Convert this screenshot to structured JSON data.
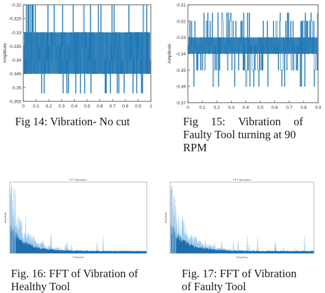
{
  "colors": {
    "series": "#1f77b4",
    "fft_dark": "#1f6fae",
    "fft_light": "#9ec9ea",
    "axis": "#333333"
  },
  "captions": {
    "fig14": "Fig 14: Vibration- No cut",
    "fig15": [
      "Fig",
      "15:",
      "Vibration",
      "of",
      "Faulty Tool turning at 90",
      "RPM"
    ],
    "fig16": [
      "Fig. 16: FFT of Vibration of",
      "Healthy Tool"
    ],
    "fig17": [
      "Fig. 17: FFT of Vibration",
      "of Faulty Tool"
    ]
  },
  "chart_data": [
    {
      "id": "fig14",
      "type": "line",
      "title": "",
      "xlabel": "",
      "ylabel": "Amplitude",
      "xlim": [
        0,
        1
      ],
      "ylim": [
        -0.355,
        -0.32
      ],
      "xticks": [
        "0",
        "0.1",
        "0.2",
        "0.3",
        "0.4",
        "0.5",
        "0.6",
        "0.7",
        "0.8",
        "0.9",
        "1"
      ],
      "yticks": [
        "-0.32",
        "-0.325",
        "-0.33",
        "-0.335",
        "-0.34",
        "-0.345",
        "-0.35",
        "-0.355"
      ],
      "levels": [
        -0.32,
        -0.33,
        -0.335,
        -0.34,
        -0.345,
        -0.352
      ],
      "band": [
        -0.345,
        -0.33
      ],
      "grid": false
    },
    {
      "id": "fig15",
      "type": "line",
      "title": "",
      "xlabel": "",
      "ylabel": "Amplitude",
      "xlim": [
        0,
        0.9
      ],
      "ylim": [
        -0.37,
        -0.31
      ],
      "xticks": [
        "0",
        "0.1",
        "0.2",
        "0.3",
        "0.4",
        "0.5",
        "0.6",
        "0.7",
        "0.8",
        "0.9"
      ],
      "yticks": [
        "-0.31",
        "-0.32",
        "-0.33",
        "-0.34",
        "-0.35",
        "-0.36",
        "-0.37"
      ],
      "levels": [
        -0.315,
        -0.32,
        -0.33,
        -0.335,
        -0.34,
        -0.35,
        -0.36
      ],
      "band": [
        -0.34,
        -0.33
      ],
      "grid": false
    },
    {
      "id": "fig16",
      "type": "area",
      "title": "FFT Spectrum",
      "xlabel": "Frequency",
      "ylabel": "Amplitude",
      "grid": false
    },
    {
      "id": "fig17",
      "type": "area",
      "title": "FFT Spectrum",
      "xlabel": "Frequency",
      "ylabel": "Amplitude",
      "grid": false
    }
  ]
}
